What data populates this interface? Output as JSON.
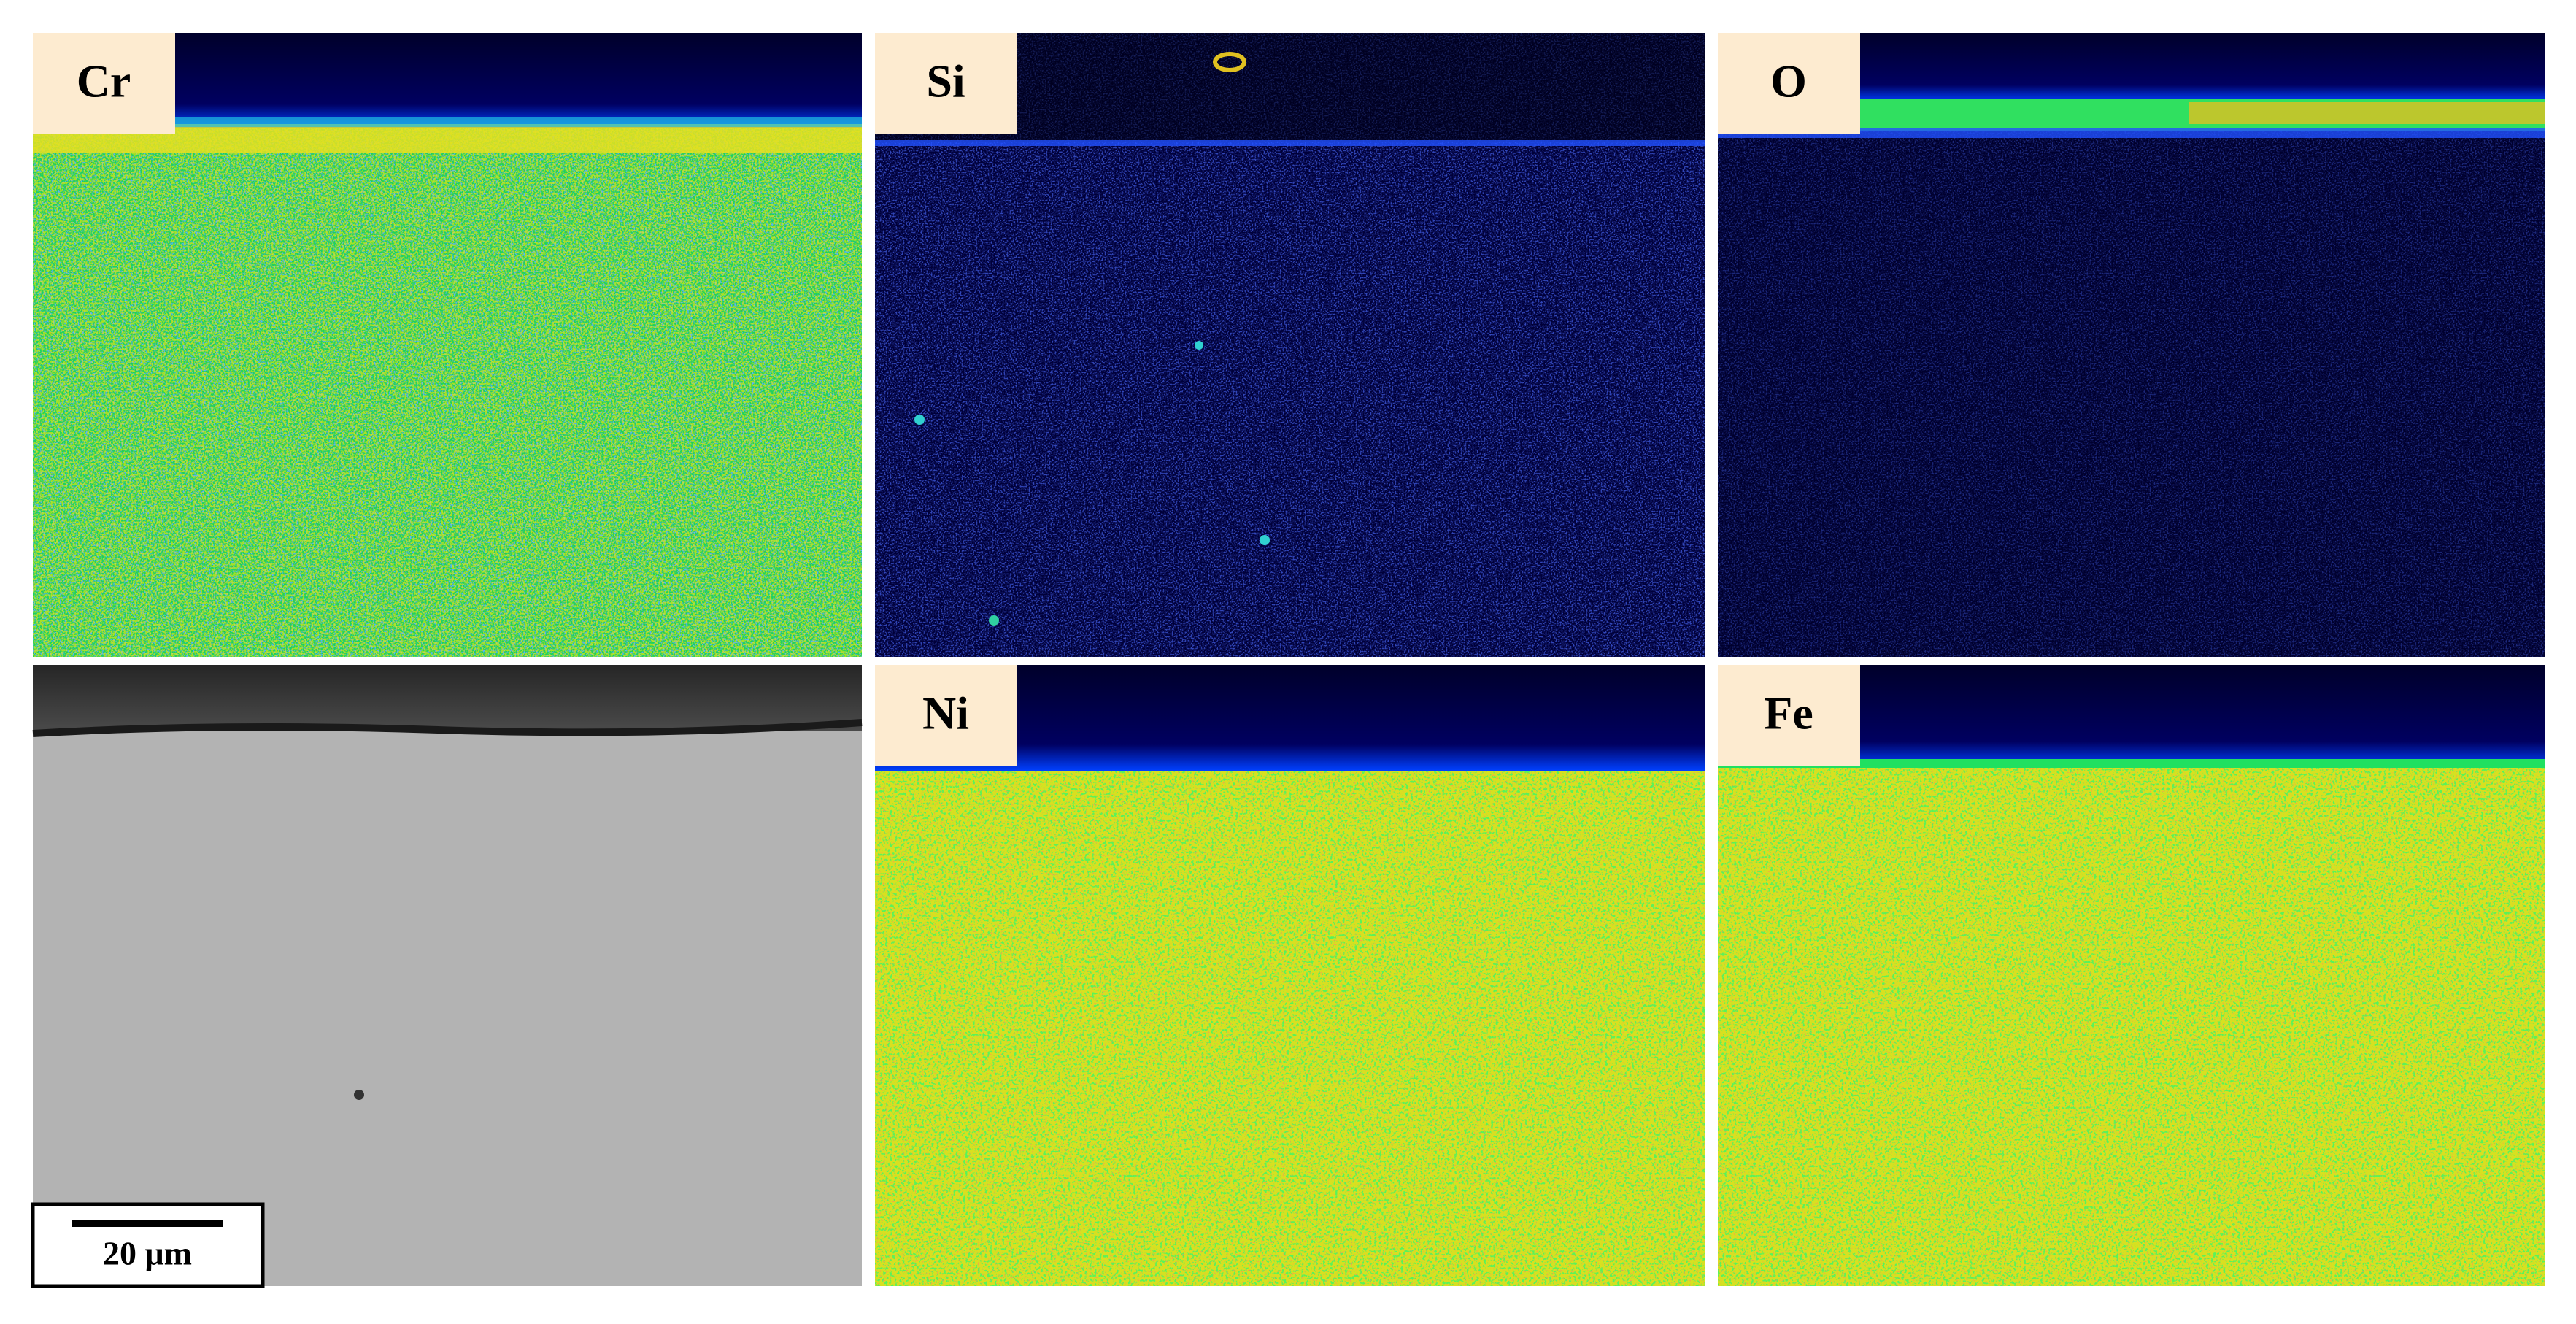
{
  "maps": [
    {
      "label": "Cr"
    },
    {
      "label": "Si"
    },
    {
      "label": "O"
    },
    {
      "label": "Ni"
    },
    {
      "label": "Fe"
    }
  ],
  "scale_bar": {
    "label": "20 μm"
  }
}
